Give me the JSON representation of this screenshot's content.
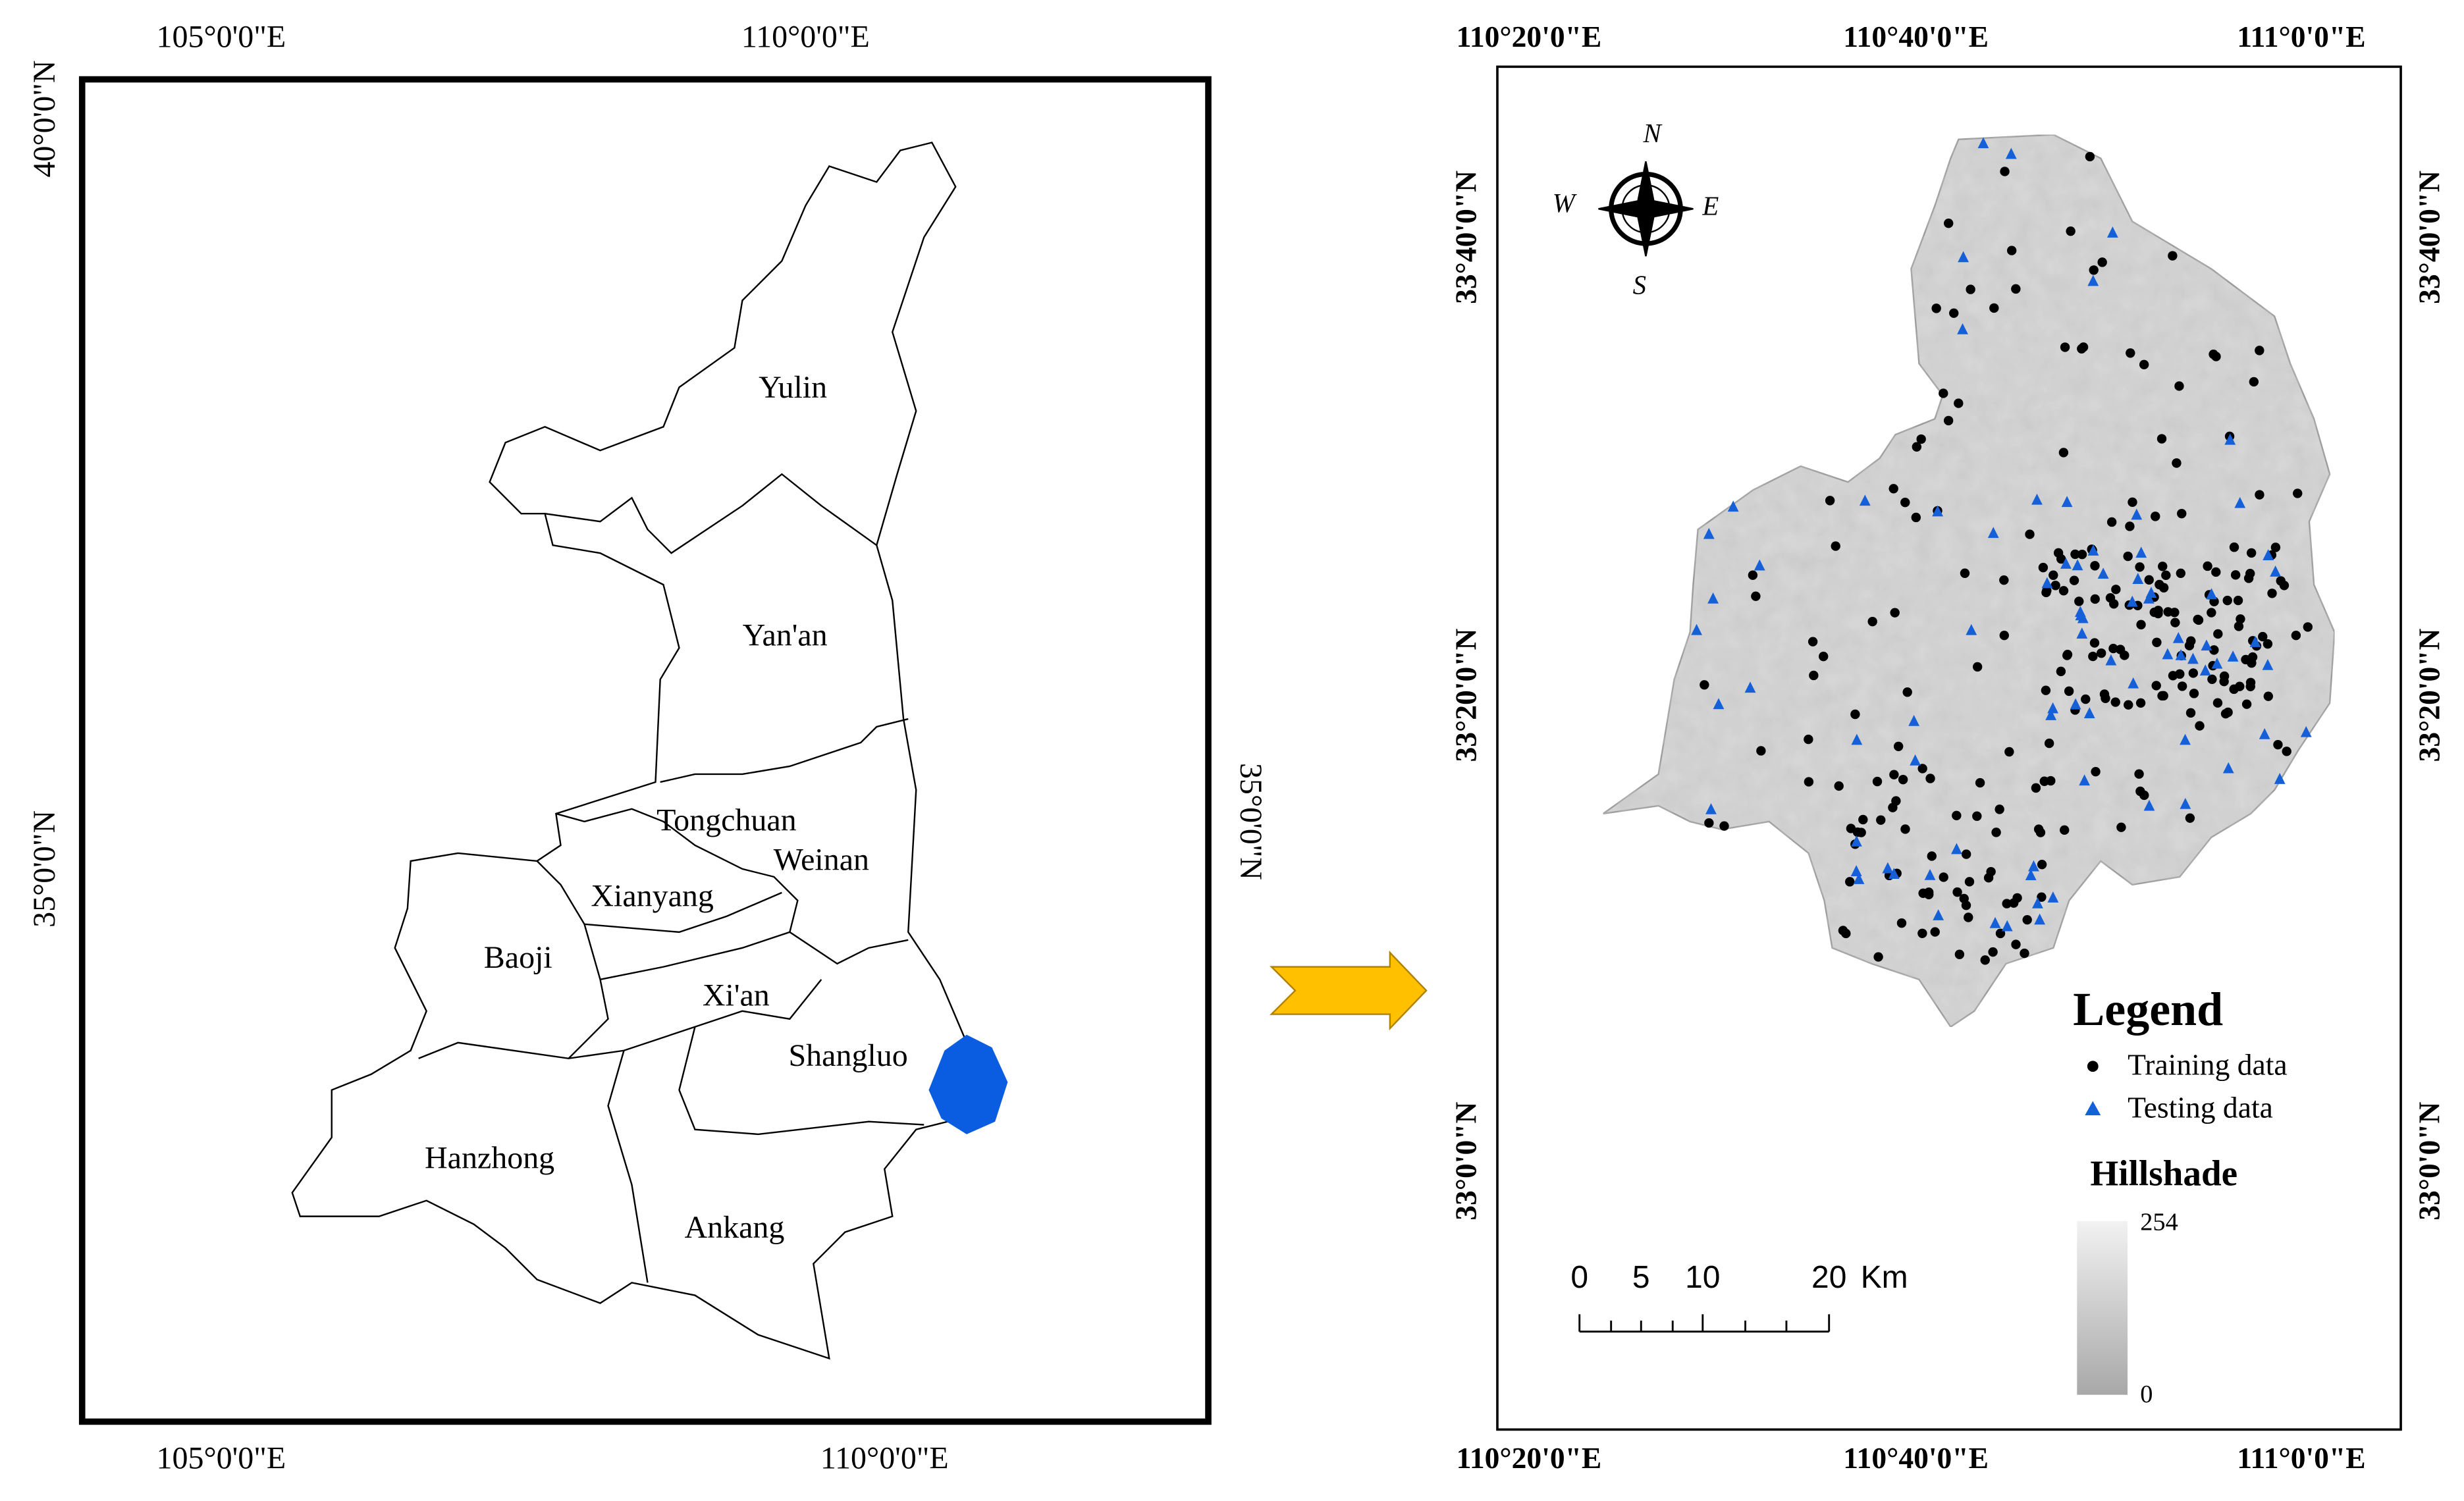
{
  "left_map": {
    "top_labels": [
      "105°0'0\"E",
      "110°0'0\"E"
    ],
    "bottom_labels": [
      "105°0'0\"E",
      "110°0'0\"E"
    ],
    "left_labels": [
      "40°0'0\"N",
      "35°0'0\"N"
    ],
    "right_labels": [
      "35°0'0\"N"
    ],
    "regions": [
      "Yulin",
      "Yan'an",
      "Tongchuan",
      "Weinan",
      "Xianyang",
      "Baoji",
      "Xi'an",
      "Shangluo",
      "Hanzhong",
      "Ankang"
    ]
  },
  "right_map": {
    "top_labels": [
      "110°20'0\"E",
      "110°40'0\"E",
      "111°0'0\"E"
    ],
    "bottom_labels": [
      "110°20'0\"E",
      "110°40'0\"E",
      "111°0'0\"E"
    ],
    "left_labels": [
      "33°40'0\"N",
      "33°20'0\"N",
      "33°0'0\"N"
    ],
    "right_labels": [
      "33°40'0\"N",
      "33°20'0\"N",
      "33°0'0\"N"
    ],
    "compass": {
      "north": "N",
      "east": "E",
      "south": "S",
      "west": "W"
    },
    "legend": {
      "title": "Legend",
      "items": [
        "Training data",
        "Testing data"
      ],
      "hillshade_title": "Hillshade",
      "hillshade_max": "254",
      "hillshade_min": "0"
    },
    "scale_bar": {
      "ticks": [
        "0",
        "5",
        "10",
        "20"
      ],
      "unit": "Km"
    }
  }
}
